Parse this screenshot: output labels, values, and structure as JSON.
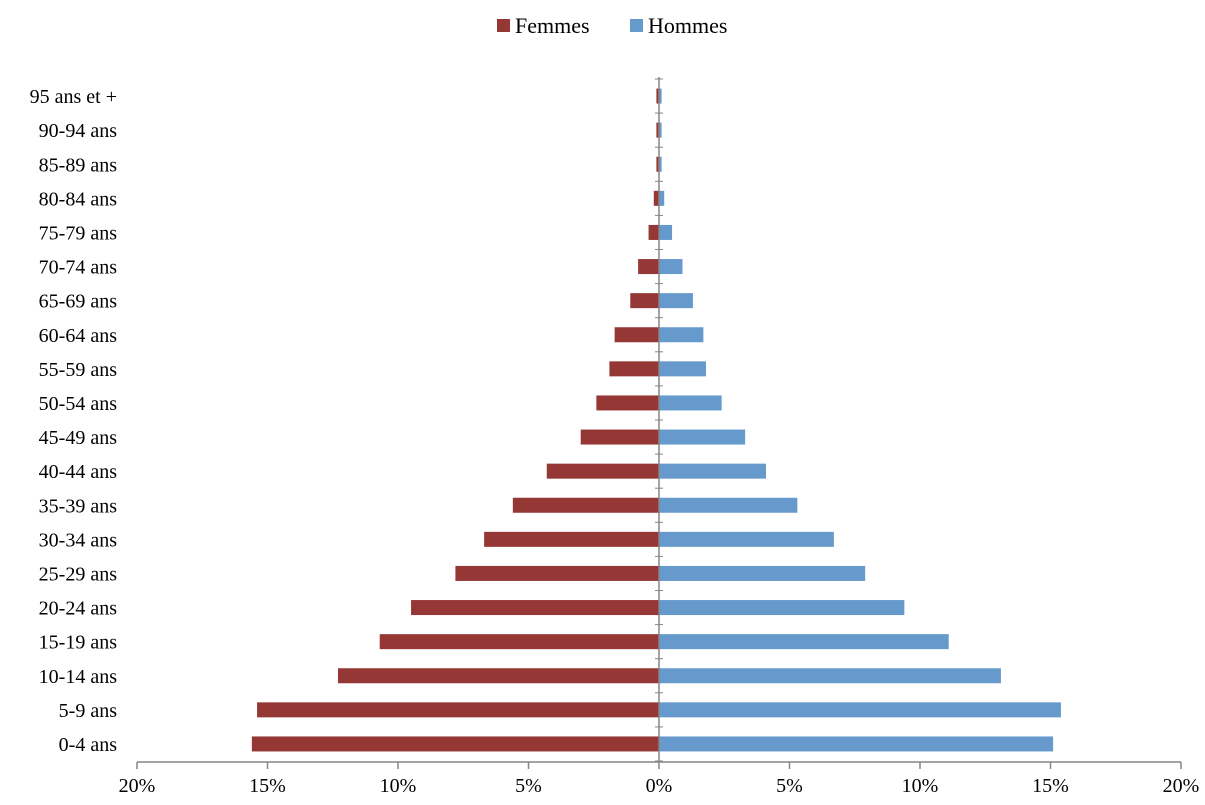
{
  "chart_data": {
    "type": "bar",
    "orientation": "horizontal",
    "layout": "population-pyramid",
    "categories": [
      "0-4 ans",
      "5-9 ans",
      "10-14 ans",
      "15-19 ans",
      "20-24 ans",
      "25-29 ans",
      "30-34 ans",
      "35-39 ans",
      "40-44 ans",
      "45-49 ans",
      "50-54 ans",
      "55-59 ans",
      "60-64 ans",
      "65-69 ans",
      "70-74 ans",
      "75-79 ans",
      "80-84 ans",
      "85-89 ans",
      "90-94 ans",
      "95 ans et +"
    ],
    "series": [
      {
        "name": "Femmes",
        "color": "#953735",
        "side": "left",
        "values": [
          15.6,
          15.4,
          12.3,
          10.7,
          9.5,
          7.8,
          6.7,
          5.6,
          4.3,
          3.0,
          2.4,
          1.9,
          1.7,
          1.1,
          0.8,
          0.4,
          0.2,
          0.1,
          0.1,
          0.1
        ]
      },
      {
        "name": "Hommes",
        "color": "#6699CC",
        "side": "right",
        "values": [
          15.1,
          15.4,
          13.1,
          11.1,
          9.4,
          7.9,
          6.7,
          5.3,
          4.1,
          3.3,
          2.4,
          1.8,
          1.7,
          1.3,
          0.9,
          0.5,
          0.2,
          0.1,
          0.1,
          0.1
        ]
      }
    ],
    "x_ticks": [
      "20%",
      "15%",
      "10%",
      "5%",
      "0%",
      "5%",
      "10%",
      "15%",
      "20%"
    ],
    "xlim": [
      -20,
      20
    ],
    "unit": "%",
    "legend_position": "top-center",
    "grid": false,
    "title": "",
    "xlabel": "",
    "ylabel": ""
  }
}
